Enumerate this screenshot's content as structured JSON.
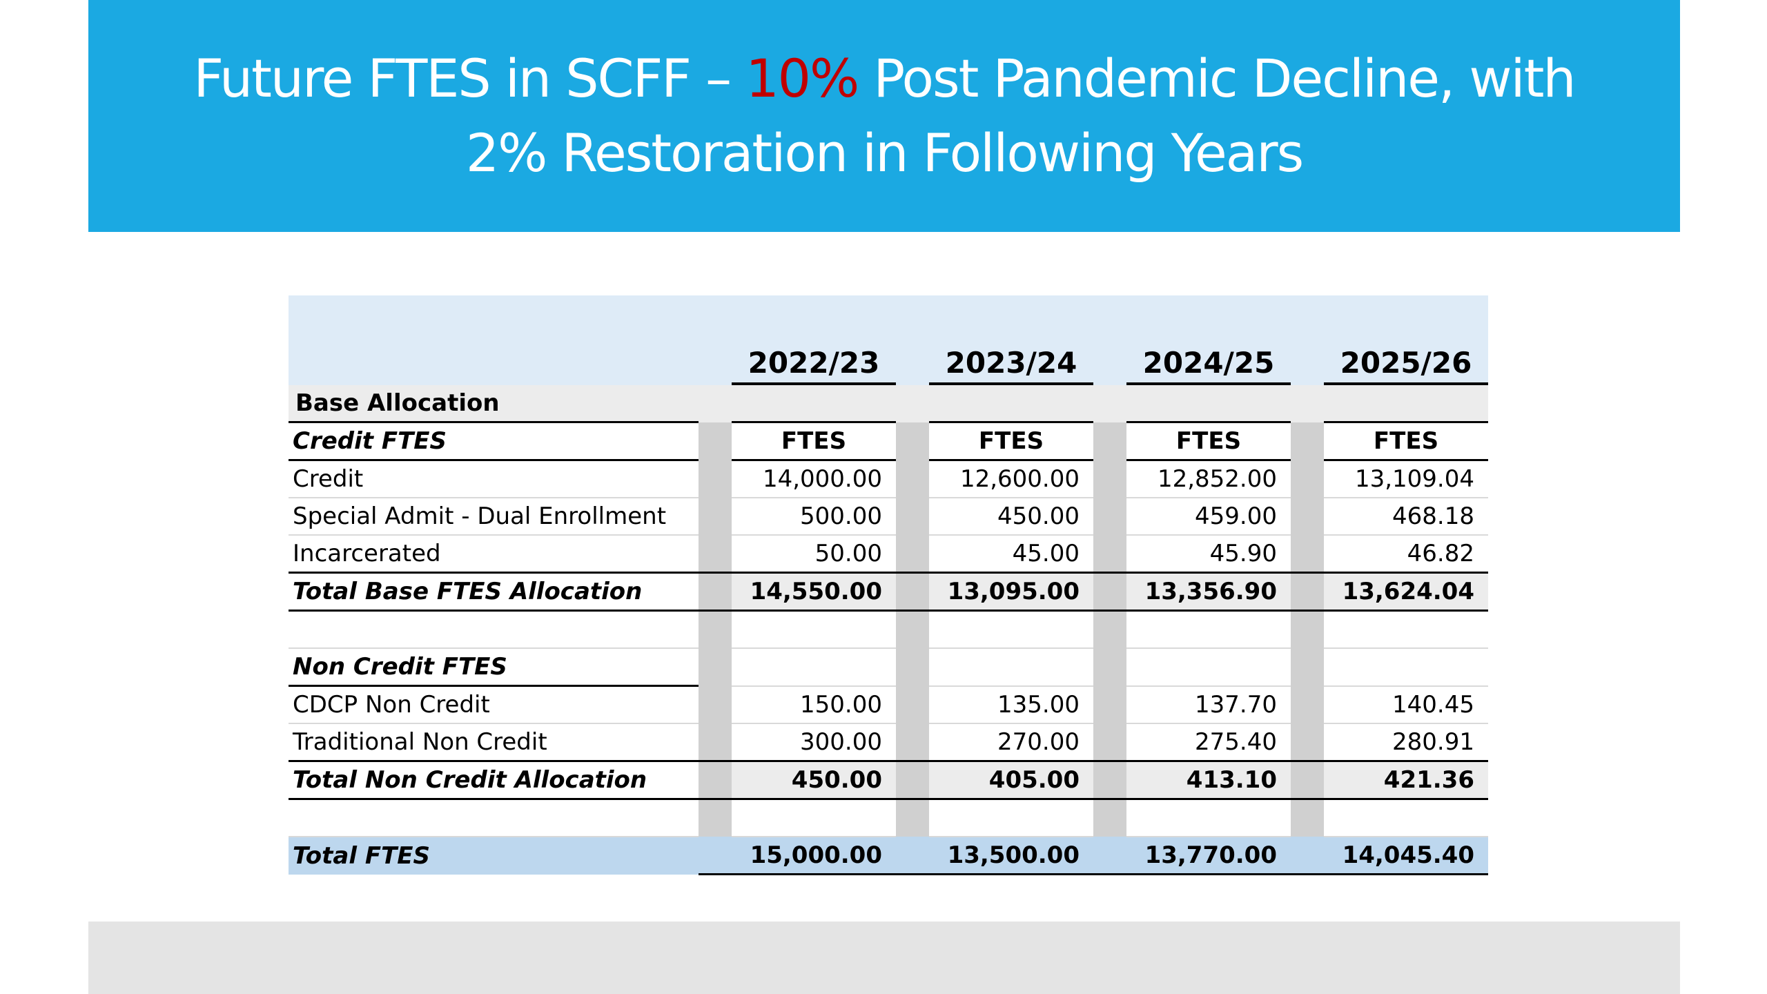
{
  "slide": {
    "title_line1_before": "Future FTES in SCFF – ",
    "title_accent": "10%",
    "title_line1_after": " Post Pandemic Decline, with",
    "title_line2": "2% Restoration in Following Years"
  },
  "table": {
    "years": [
      "2022/23",
      "2023/24",
      "2024/25",
      "2025/26"
    ],
    "section_label": "Base Allocation",
    "credit_header": "Credit FTES",
    "column_unit": "FTES",
    "credit_rows": [
      {
        "label": "Credit",
        "values": [
          "14,000.00",
          "12,600.00",
          "12,852.00",
          "13,109.04"
        ]
      },
      {
        "label": "Special Admit - Dual Enrollment",
        "values": [
          "500.00",
          "450.00",
          "459.00",
          "468.18"
        ]
      },
      {
        "label": "Incarcerated",
        "values": [
          "50.00",
          "45.00",
          "45.90",
          "46.82"
        ]
      }
    ],
    "total_base": {
      "label": "Total Base FTES Allocation",
      "values": [
        "14,550.00",
        "13,095.00",
        "13,356.90",
        "13,624.04"
      ]
    },
    "noncredit_header": "Non Credit FTES",
    "noncredit_rows": [
      {
        "label": "CDCP Non Credit",
        "values": [
          "150.00",
          "135.00",
          "137.70",
          "140.45"
        ]
      },
      {
        "label": "Traditional Non Credit",
        "values": [
          "300.00",
          "270.00",
          "275.40",
          "280.91"
        ]
      }
    ],
    "total_noncredit": {
      "label": "Total Non Credit Allocation",
      "values": [
        "450.00",
        "405.00",
        "413.10",
        "421.36"
      ]
    },
    "total_ftes": {
      "label": "Total FTES",
      "values": [
        "15,000.00",
        "13,500.00",
        "13,770.00",
        "14,045.40"
      ]
    }
  }
}
